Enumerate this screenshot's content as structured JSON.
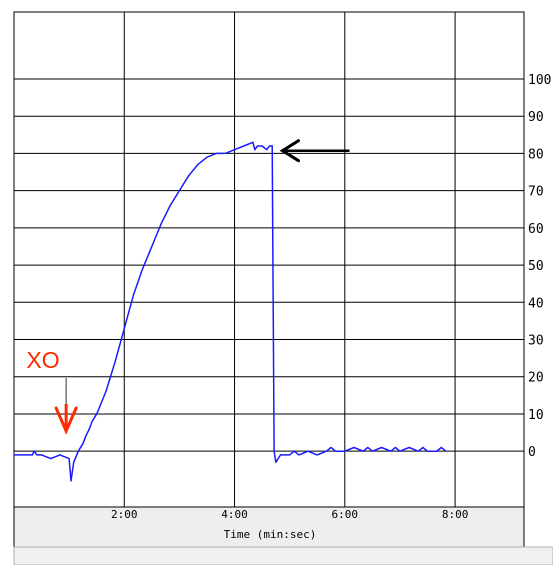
{
  "chart_data": {
    "type": "line",
    "title": "",
    "xlabel": "Time (min:sec)",
    "ylabel": "",
    "x_unit": "seconds",
    "xlim": [
      0,
      555
    ],
    "ylim": [
      -15,
      118
    ],
    "x_ticks": [
      {
        "value": 120,
        "label": "2:00"
      },
      {
        "value": 240,
        "label": "4:00"
      },
      {
        "value": 360,
        "label": "6:00"
      },
      {
        "value": 480,
        "label": "8:00"
      }
    ],
    "y_ticks": [
      {
        "value": 0,
        "label": "0"
      },
      {
        "value": 10,
        "label": "10"
      },
      {
        "value": 20,
        "label": "20"
      },
      {
        "value": 30,
        "label": "30"
      },
      {
        "value": 40,
        "label": "40"
      },
      {
        "value": 50,
        "label": "50"
      },
      {
        "value": 60,
        "label": "60"
      },
      {
        "value": 70,
        "label": "70"
      },
      {
        "value": 80,
        "label": "80"
      },
      {
        "value": 90,
        "label": "90"
      },
      {
        "value": 100,
        "label": "100"
      }
    ],
    "grid": true,
    "series": [
      {
        "color": "#1a1aff",
        "x": [
          0,
          10,
          20,
          22,
          25,
          30,
          40,
          50,
          60,
          62,
          65,
          70,
          75,
          78,
          82,
          85,
          90,
          100,
          110,
          120,
          130,
          140,
          150,
          160,
          170,
          180,
          190,
          200,
          210,
          220,
          230,
          240,
          250,
          260,
          262,
          265,
          270,
          275,
          278,
          281,
          283,
          285,
          290,
          300,
          305,
          310,
          320,
          330,
          340,
          345,
          350,
          360,
          370,
          380,
          385,
          390,
          400,
          410,
          415,
          420,
          430,
          440,
          445,
          450,
          460,
          465,
          470
        ],
        "y": [
          -1,
          -1,
          -1,
          0,
          -1,
          -1,
          -2,
          -1,
          -2,
          -8,
          -3,
          0,
          2,
          4,
          6,
          8,
          10,
          16,
          24,
          33,
          42,
          49,
          55,
          61,
          66,
          70,
          74,
          77,
          79,
          80,
          80,
          81,
          82,
          83,
          81,
          82,
          82,
          81,
          82,
          82,
          0,
          -3,
          -1,
          -1,
          0,
          -1,
          0,
          -1,
          0,
          1,
          0,
          0,
          1,
          0,
          1,
          0,
          1,
          0,
          1,
          0,
          1,
          0,
          1,
          0,
          0,
          1,
          0
        ]
      }
    ],
    "annotations": [
      {
        "text": "XO",
        "x": 60,
        "color": "#ff2a00",
        "type": "arrow-down"
      },
      {
        "text": "",
        "x": 290,
        "y": 81,
        "color": "#000000",
        "type": "arrow-left"
      }
    ]
  }
}
